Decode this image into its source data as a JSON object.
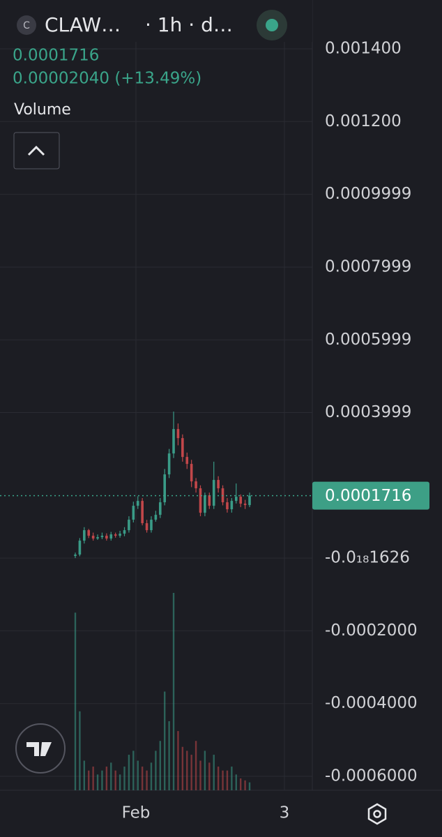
{
  "header": {
    "symbol_initial": "C",
    "symbol": "CLAW…",
    "interval": "· 1h · d…",
    "price": "0.0001716",
    "change": "0.00002040 (+13.49%)",
    "volume_label": "Volume"
  },
  "chart_data": {
    "type": "candlestick",
    "open": [
      5.8e-06,
      9.6e-06,
      4.79e-05,
      7.67e-05,
      6.14e-05,
      5.37e-05,
      5.75e-05,
      6.14e-05,
      5.37e-05,
      6.52e-05,
      6.14e-05,
      6.71e-05,
      7.67e-05,
      0.0001055,
      0.0001438,
      0.0001572,
      9.59e-05,
      7.67e-05,
      0.0001055,
      0.0001189,
      0.0001534,
      0.0002301,
      0.0002876,
      0.0003547,
      0.0003298,
      0.000278,
      0.0002589,
      0.0002109,
      0.0001918,
      0.0001246,
      0.0001726,
      0.0001438,
      0.0002148,
      0.0001918,
      0.0001534,
      0.0001342,
      0.0001572,
      0.0001687,
      0.0001496,
      0.0001457
    ],
    "high": [
      1.5e-05,
      5.5e-05,
      8.5e-05,
      8e-05,
      7e-05,
      6.5e-05,
      7e-05,
      6.8e-05,
      7.2e-05,
      7e-05,
      7.5e-05,
      8.5e-05,
      0.000115,
      0.000155,
      0.00017,
      0.000165,
      0.000105,
      0.000115,
      0.00013,
      0.000165,
      0.000245,
      0.0003,
      0.0004027,
      0.00037,
      0.00034,
      0.00029,
      0.00027,
      0.00022,
      0.0002,
      0.00018,
      0.00018,
      0.000265,
      0.000225,
      0.0002,
      0.000165,
      0.000165,
      0.000205,
      0.000175,
      0.00016,
      0.00018
    ],
    "low": [
      0.0,
      5e-06,
      4e-05,
      5.5e-05,
      4.8e-05,
      5e-05,
      5.2e-05,
      4.8e-05,
      4.8e-05,
      5.6e-05,
      5.6e-05,
      6e-05,
      7e-05,
      9.8e-05,
      0.000135,
      9e-05,
      7e-05,
      7e-05,
      0.0001,
      0.00011,
      0.000145,
      0.00022,
      0.000275,
      0.00031,
      0.000265,
      0.000245,
      0.000195,
      0.00018,
      0.000115,
      0.000115,
      0.000135,
      0.000135,
      0.00018,
      0.000145,
      0.000125,
      0.000125,
      0.00015,
      0.00014,
      0.000135,
      0.00014
    ],
    "close": [
      9.6e-06,
      4.79e-05,
      7.67e-05,
      6.14e-05,
      5.37e-05,
      5.75e-05,
      6.14e-05,
      5.37e-05,
      6.52e-05,
      6.14e-05,
      6.71e-05,
      7.67e-05,
      0.0001055,
      0.0001438,
      0.0001572,
      9.59e-05,
      7.67e-05,
      0.0001055,
      0.0001189,
      0.0001534,
      0.0002301,
      0.0002876,
      0.0003547,
      0.0003298,
      0.000278,
      0.0002589,
      0.0002109,
      0.0001918,
      0.0001246,
      0.0001726,
      0.0001438,
      0.0002148,
      0.0001918,
      0.0001534,
      0.0001342,
      0.0001572,
      0.0001687,
      0.0001496,
      0.0001457,
      0.0001716
    ],
    "volume": [
      90,
      40,
      15,
      10,
      12,
      8,
      10,
      12,
      14,
      10,
      8,
      12,
      18,
      20,
      15,
      12,
      10,
      14,
      20,
      25,
      50,
      35,
      100,
      30,
      22,
      20,
      18,
      25,
      15,
      20,
      14,
      18,
      12,
      10,
      10,
      12,
      8,
      6,
      5,
      4
    ],
    "last_price": 0.0001716,
    "up_color": "#3a9b87",
    "down_color": "#c2474a",
    "ylim": [
      -0.000619,
      0.00145
    ],
    "yticks": [
      {
        "value": 0.0014,
        "label": "0.001400"
      },
      {
        "value": 0.0012,
        "label": "0.001200"
      },
      0.0009999,
      0.0007999,
      0.0005999,
      0.0003999,
      {
        "value": -1.626e-19,
        "label": "-0.0₁₈1626"
      },
      {
        "value": -0.0002,
        "label": "-0.0002000"
      },
      {
        "value": -0.0004,
        "label": "-0.0004000"
      },
      {
        "value": -0.0006,
        "label": "-0.0006000"
      }
    ],
    "xticks": [
      "Feb",
      "3"
    ],
    "grid": true
  }
}
